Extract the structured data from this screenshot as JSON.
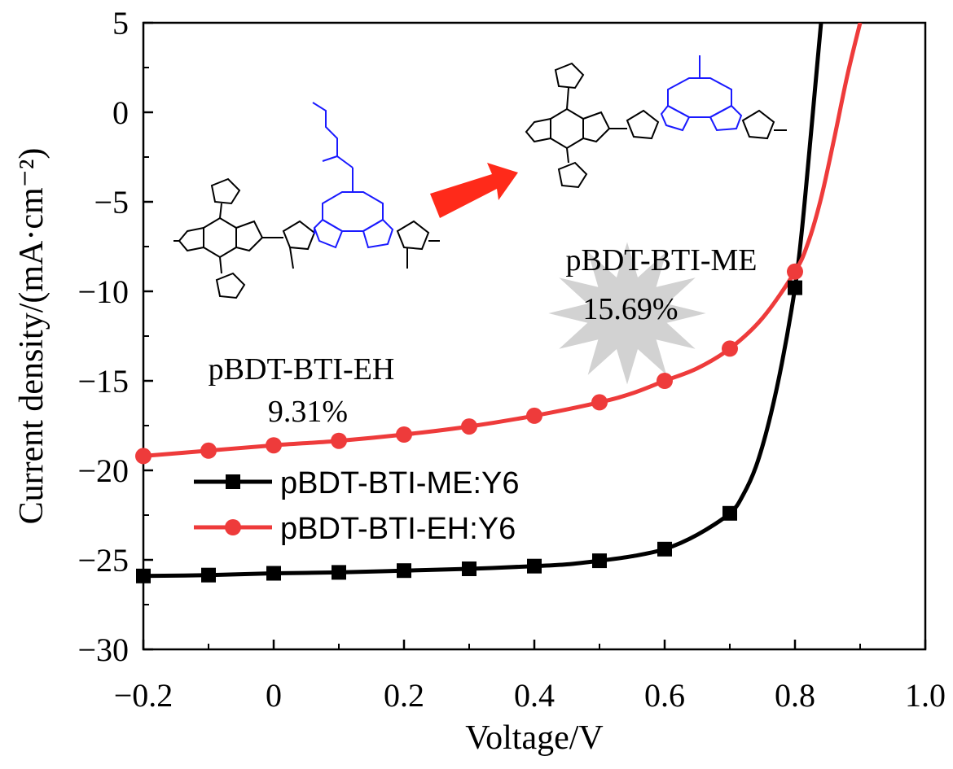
{
  "chart_data": {
    "type": "line",
    "xlabel": "Voltage/V",
    "ylabel": "Current density/(mA·cm⁻²)",
    "xlim": [
      -0.2,
      1.0
    ],
    "ylim": [
      -30,
      5
    ],
    "x_ticks": [
      "-0.2",
      "0",
      "0.2",
      "0.4",
      "0.6",
      "0.8",
      "1.0"
    ],
    "y_ticks": [
      "-30",
      "-25",
      "-20",
      "-15",
      "-10",
      "-5",
      "0",
      "5"
    ],
    "x_tick_values": [
      -0.2,
      0,
      0.2,
      0.4,
      0.6,
      0.8,
      1.0
    ],
    "y_tick_values": [
      -30,
      -25,
      -20,
      -15,
      -10,
      -5,
      0,
      5
    ],
    "grid": false,
    "legend_position": "lower-left",
    "series": [
      {
        "name": "pBDT-BTI-ME:Y6",
        "color": "#000000",
        "marker": "square",
        "x": [
          -0.2,
          -0.1,
          0.0,
          0.1,
          0.2,
          0.3,
          0.4,
          0.5,
          0.6,
          0.7,
          0.8
        ],
        "y": [
          -25.9,
          -25.85,
          -25.75,
          -25.7,
          -25.6,
          -25.5,
          -25.35,
          -25.05,
          -24.4,
          -22.4,
          -9.8
        ],
        "curve_x": [
          -0.2,
          -0.1,
          0.0,
          0.1,
          0.2,
          0.3,
          0.4,
          0.45,
          0.5,
          0.55,
          0.6,
          0.65,
          0.7,
          0.72,
          0.74,
          0.76,
          0.78,
          0.8,
          0.81,
          0.82,
          0.83,
          0.84
        ],
        "curve_y": [
          -25.9,
          -25.85,
          -25.75,
          -25.7,
          -25.6,
          -25.5,
          -25.35,
          -25.25,
          -25.05,
          -24.8,
          -24.4,
          -23.6,
          -22.4,
          -21.4,
          -19.8,
          -17.3,
          -14.0,
          -9.8,
          -6.8,
          -3.0,
          1.0,
          5.0
        ]
      },
      {
        "name": "pBDT-BTI-EH:Y6",
        "color": "#ee3b3b",
        "marker": "circle",
        "x": [
          -0.2,
          -0.1,
          0.0,
          0.1,
          0.2,
          0.3,
          0.4,
          0.5,
          0.6,
          0.7,
          0.8
        ],
        "y": [
          -19.2,
          -18.9,
          -18.6,
          -18.35,
          -18.0,
          -17.55,
          -16.95,
          -16.2,
          -15.0,
          -13.2,
          -8.9
        ],
        "curve_x": [
          -0.2,
          -0.1,
          0.0,
          0.1,
          0.2,
          0.3,
          0.4,
          0.5,
          0.55,
          0.6,
          0.65,
          0.7,
          0.75,
          0.8,
          0.82,
          0.84,
          0.86,
          0.88,
          0.9
        ],
        "curve_y": [
          -19.2,
          -18.9,
          -18.6,
          -18.35,
          -18.0,
          -17.55,
          -16.95,
          -16.2,
          -15.7,
          -15.0,
          -14.3,
          -13.2,
          -11.5,
          -8.9,
          -7.3,
          -4.8,
          -1.5,
          2.0,
          5.0
        ]
      }
    ],
    "annotations": {
      "polymer_eh": "pBDT-BTI-EH",
      "pce_eh": "9.31%",
      "polymer_me": "pBDT-BTI-ME",
      "pce_me": "15.69%"
    }
  }
}
